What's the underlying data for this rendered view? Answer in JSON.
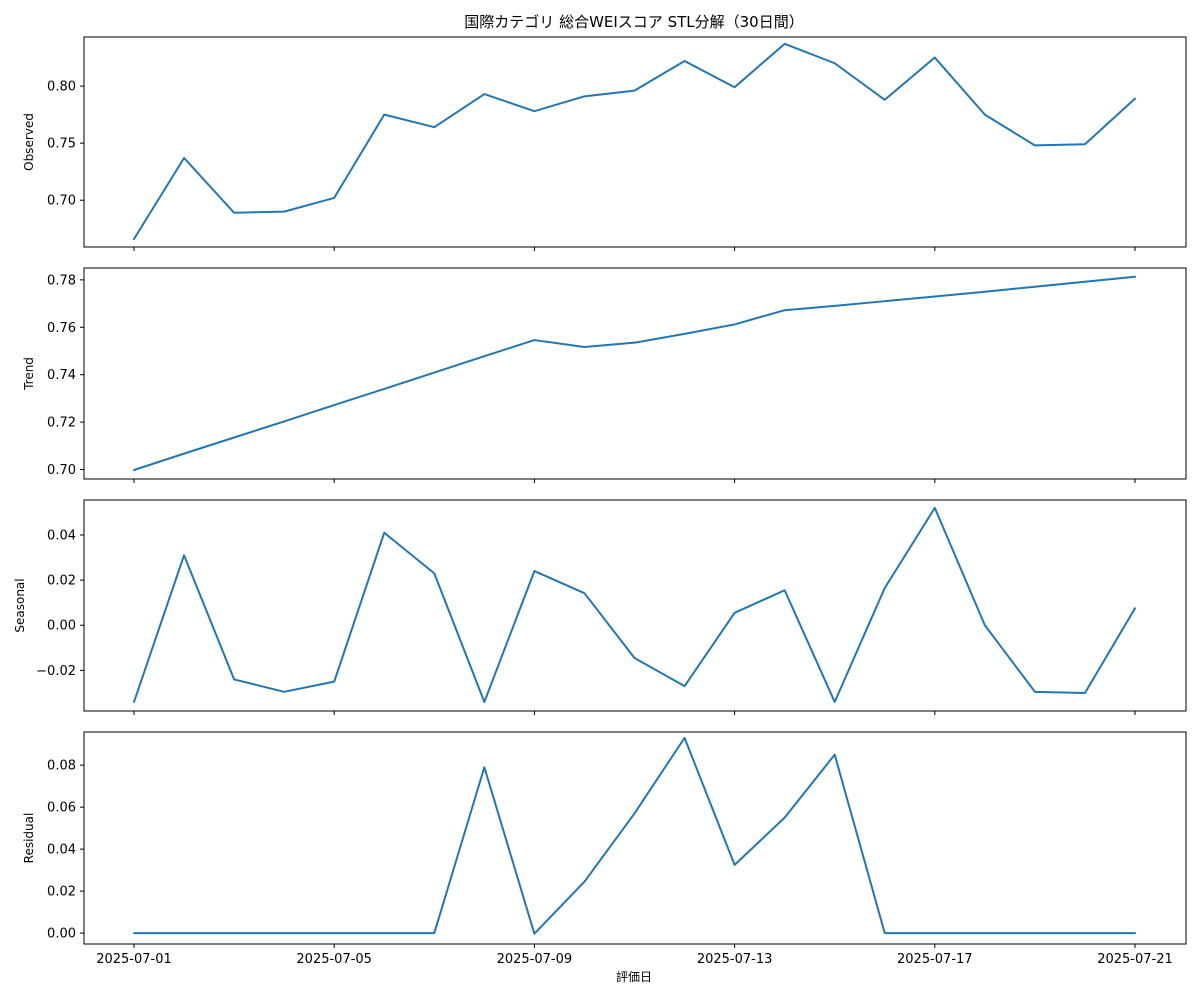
{
  "chart_data": {
    "type": "line",
    "title": "国際カテゴリ 総合WEIスコア STL分解（30日間）",
    "xlabel": "評価日",
    "x_dates": [
      "2025-07-01",
      "2025-07-02",
      "2025-07-03",
      "2025-07-04",
      "2025-07-05",
      "2025-07-06",
      "2025-07-07",
      "2025-07-08",
      "2025-07-09",
      "2025-07-10",
      "2025-07-11",
      "2025-07-12",
      "2025-07-13",
      "2025-07-14",
      "2025-07-15",
      "2025-07-16",
      "2025-07-17",
      "2025-07-18",
      "2025-07-19",
      "2025-07-20",
      "2025-07-21"
    ],
    "x_ticks": [
      "2025-07-01",
      "2025-07-05",
      "2025-07-09",
      "2025-07-13",
      "2025-07-17",
      "2025-07-21"
    ],
    "line_color": "#1f77b4",
    "grid": false,
    "panels": [
      {
        "ylabel": "Observed",
        "ylim": [
          0.659,
          0.843
        ],
        "y_ticks": [
          {
            "value": 0.7,
            "label": "0.70"
          },
          {
            "value": 0.75,
            "label": "0.75"
          },
          {
            "value": 0.8,
            "label": "0.80"
          }
        ],
        "values": [
          0.666,
          0.737,
          0.689,
          0.69,
          0.702,
          0.775,
          0.764,
          0.793,
          0.778,
          0.791,
          0.796,
          0.822,
          0.799,
          0.837,
          0.82,
          0.788,
          0.825,
          0.775,
          0.748,
          0.749,
          0.789
        ]
      },
      {
        "ylabel": "Trend",
        "ylim": [
          0.696,
          0.785
        ],
        "y_ticks": [
          {
            "value": 0.7,
            "label": "0.70"
          },
          {
            "value": 0.72,
            "label": "0.72"
          },
          {
            "value": 0.74,
            "label": "0.74"
          },
          {
            "value": 0.76,
            "label": "0.76"
          },
          {
            "value": 0.78,
            "label": "0.78"
          }
        ],
        "values": [
          0.6998,
          0.7067,
          0.7135,
          0.7203,
          0.7272,
          0.734,
          0.7409,
          0.7478,
          0.7546,
          0.7517,
          0.7535,
          0.7572,
          0.7612,
          0.7672,
          0.769,
          0.771,
          0.773,
          0.775,
          0.7771,
          0.7792,
          0.7813
        ]
      },
      {
        "ylabel": "Seasonal",
        "ylim": [
          -0.038,
          0.0555
        ],
        "y_ticks": [
          {
            "value": -0.02,
            "label": "−0.02"
          },
          {
            "value": 0.0,
            "label": "0.00"
          },
          {
            "value": 0.02,
            "label": "0.02"
          },
          {
            "value": 0.04,
            "label": "0.04"
          }
        ],
        "values": [
          -0.034,
          0.031,
          -0.024,
          -0.0295,
          -0.025,
          0.041,
          0.023,
          -0.034,
          0.024,
          0.0142,
          -0.0145,
          -0.027,
          0.0055,
          0.0155,
          -0.034,
          0.0165,
          0.052,
          0.0,
          -0.0295,
          -0.03,
          0.0075
        ]
      },
      {
        "ylabel": "Residual",
        "ylim": [
          -0.0052,
          0.0958
        ],
        "y_ticks": [
          {
            "value": 0.0,
            "label": "0.00"
          },
          {
            "value": 0.02,
            "label": "0.02"
          },
          {
            "value": 0.04,
            "label": "0.04"
          },
          {
            "value": 0.06,
            "label": "0.06"
          },
          {
            "value": 0.08,
            "label": "0.08"
          }
        ],
        "values": [
          0,
          0,
          0,
          0,
          0,
          0,
          0,
          0.079,
          -0.0003,
          0.0245,
          0.057,
          0.093,
          0.0325,
          0.055,
          0.085,
          0,
          0,
          0,
          0,
          0,
          0
        ]
      }
    ]
  }
}
